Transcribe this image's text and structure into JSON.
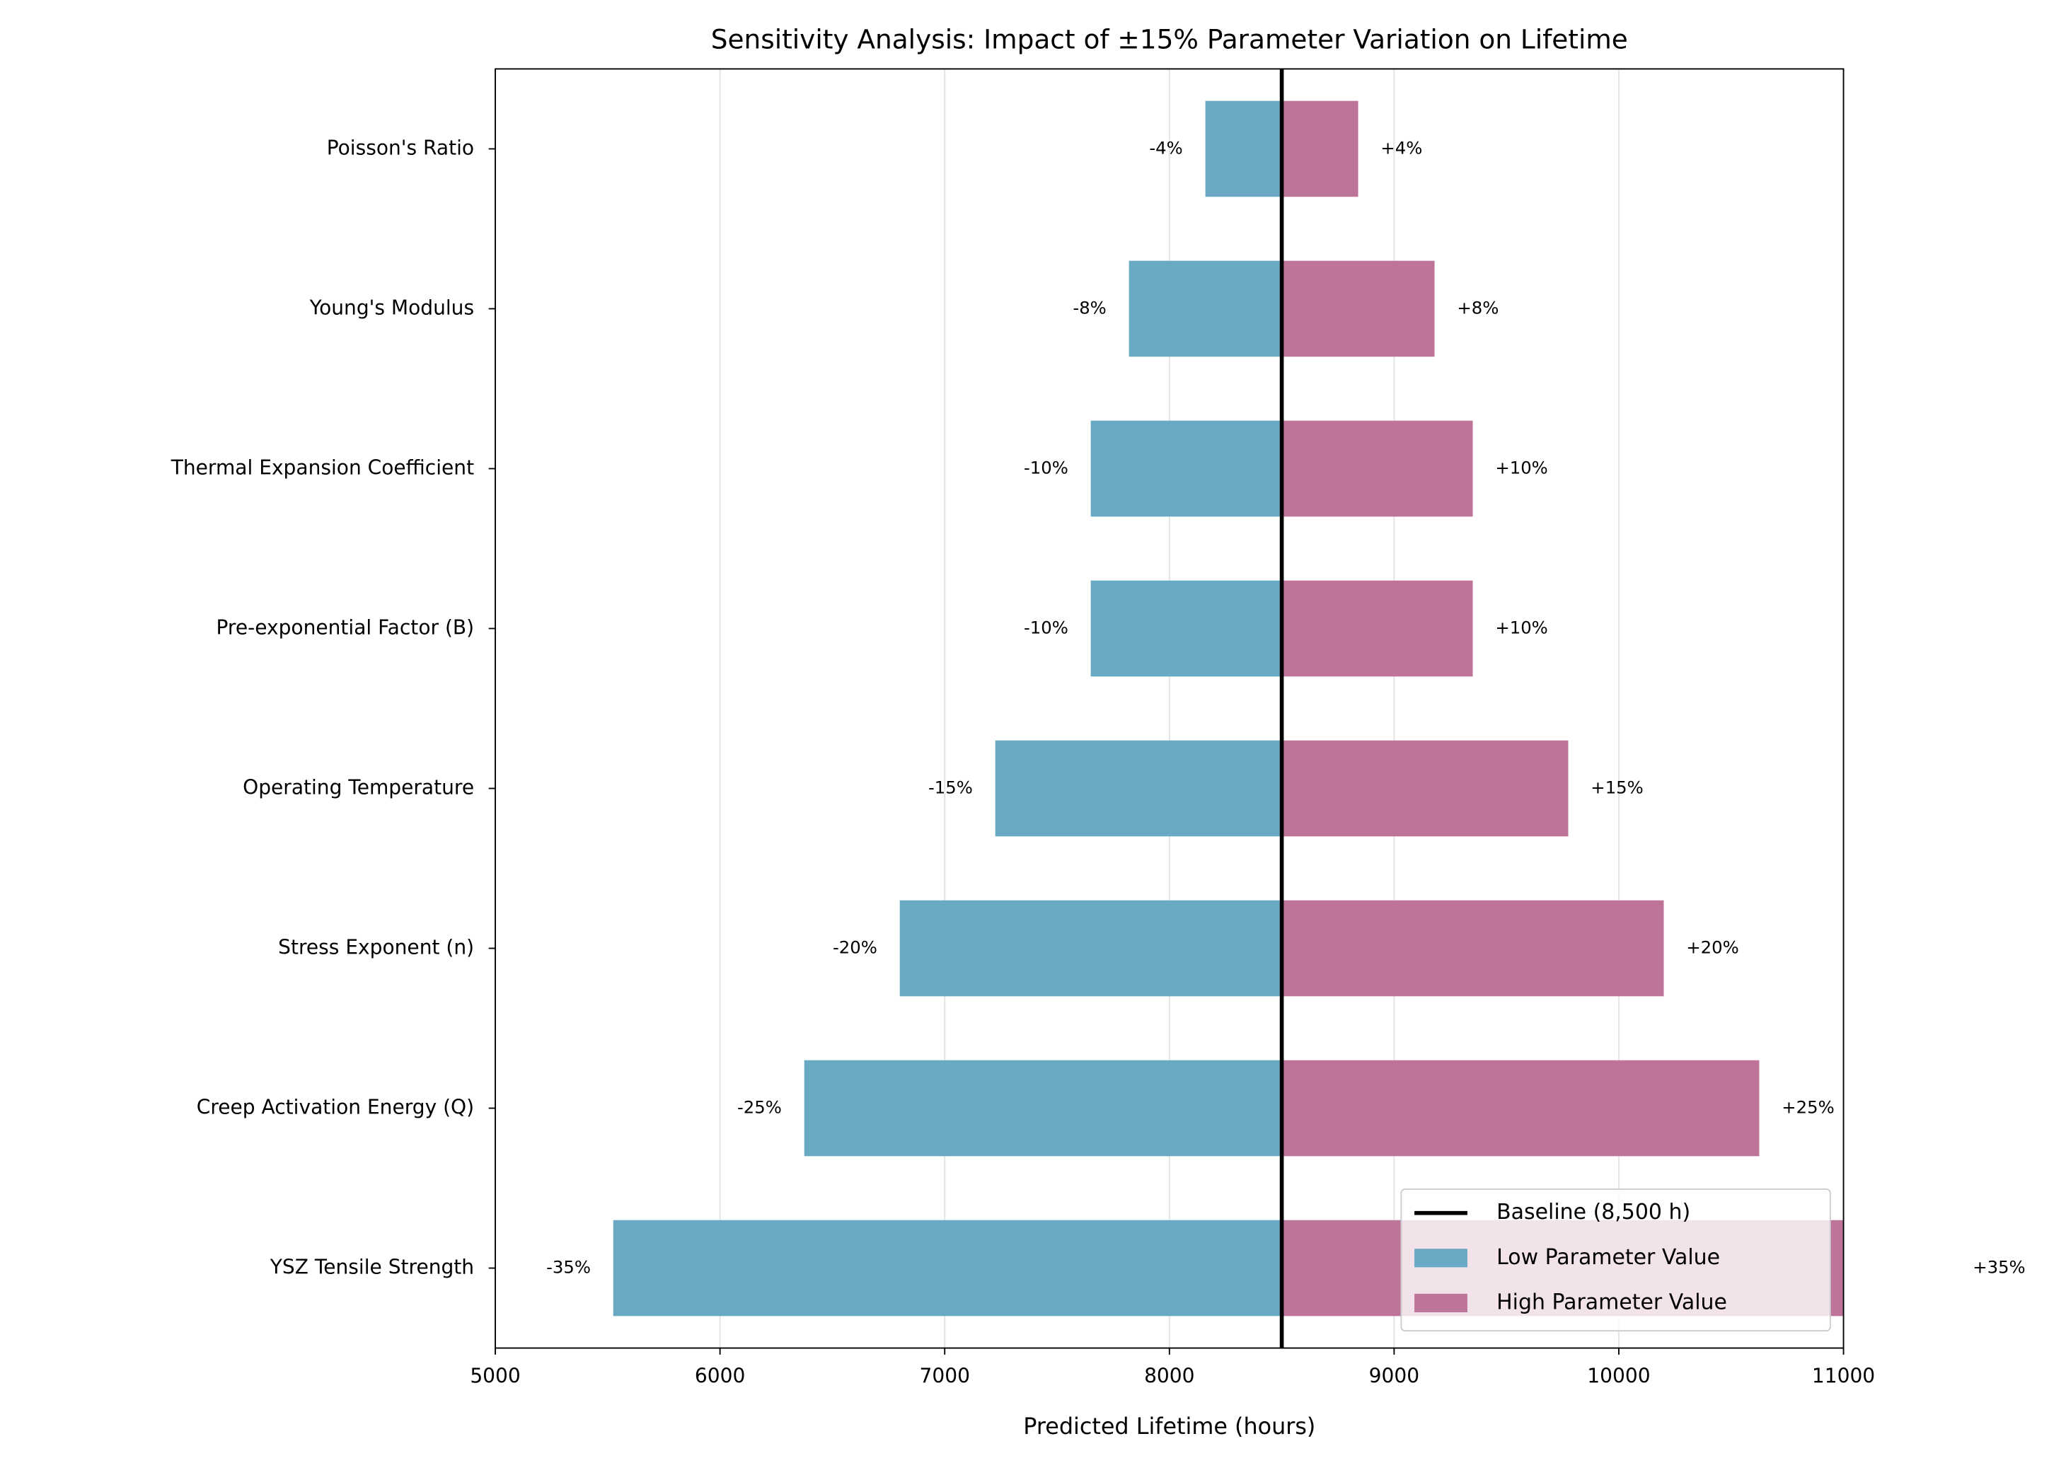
{
  "chart_data": {
    "type": "tornado",
    "title": "Sensitivity Analysis: Impact of ±15% Parameter Variation on Lifetime",
    "x_label": "Predicted Lifetime (hours)",
    "categories": [
      "Poisson's Ratio",
      "Young's Modulus",
      "Thermal Expansion Coefficient",
      "Pre-exponential Factor (B)",
      "Operating Temperature",
      "Stress Exponent (n)",
      "Creep Activation Energy (Q)",
      "YSZ Tensile Strength"
    ],
    "baseline": {
      "value": 8500,
      "label": "Baseline (8,500 h)",
      "color": "#000000"
    },
    "series": [
      {
        "name": "Low Parameter Value",
        "color": "#6aa9c4",
        "values": [
          8160,
          7820,
          7650,
          7650,
          7225,
          6800,
          6375,
          5525
        ],
        "change_labels": [
          "-4%",
          "-8%",
          "-10%",
          "-10%",
          "-15%",
          "-20%",
          "-25%",
          "-35%"
        ]
      },
      {
        "name": "High Parameter Value",
        "color": "#be7499",
        "values": [
          8840,
          9180,
          9350,
          9350,
          9775,
          10200,
          10625,
          11475
        ],
        "change_labels": [
          "+4%",
          "+8%",
          "+10%",
          "+10%",
          "+15%",
          "+20%",
          "+25%",
          "+35%"
        ]
      }
    ],
    "xlim": [
      5000,
      11000
    ],
    "xticks": [
      5000,
      6000,
      7000,
      8000,
      9000,
      10000,
      11000
    ],
    "grid": true,
    "legend": "lower right"
  }
}
